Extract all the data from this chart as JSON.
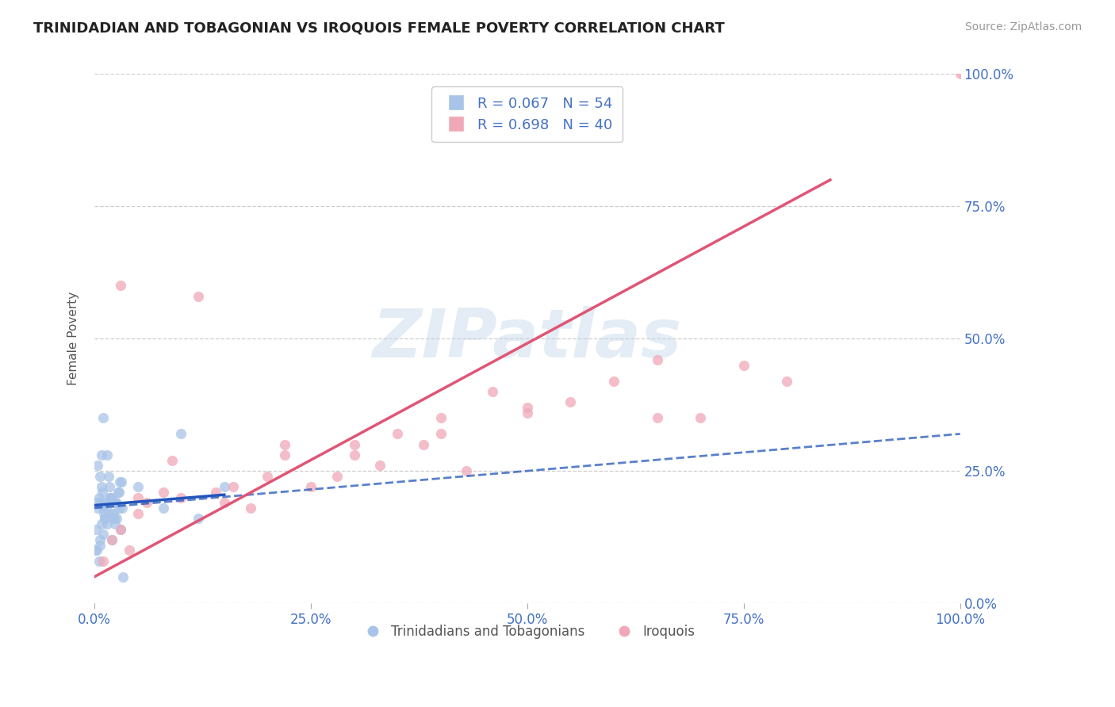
{
  "title": "TRINIDADIAN AND TOBAGONIAN VS IROQUOIS FEMALE POVERTY CORRELATION CHART",
  "source_text": "Source: ZipAtlas.com",
  "ylabel": "Female Poverty",
  "watermark": "ZIPatlas",
  "blue_label": "Trinidadians and Tobagonians",
  "pink_label": "Iroquois",
  "blue_R": 0.067,
  "blue_N": 54,
  "pink_R": 0.698,
  "pink_N": 40,
  "blue_color": "#a8c4e8",
  "pink_color": "#f0a8b8",
  "blue_line_color": "#2255bb",
  "pink_line_color": "#e05575",
  "axis_label_color": "#4472c4",
  "title_color": "#222222",
  "grid_color": "#c8c8c8",
  "background_color": "#ffffff",
  "blue_scatter_x": [
    0.2,
    0.3,
    0.3,
    0.4,
    0.5,
    0.5,
    0.6,
    0.6,
    0.7,
    0.8,
    0.8,
    0.9,
    1.0,
    1.0,
    1.1,
    1.2,
    1.3,
    1.4,
    1.5,
    1.6,
    1.7,
    1.8,
    1.9,
    2.0,
    2.1,
    2.2,
    2.3,
    2.4,
    2.5,
    2.6,
    2.7,
    2.8,
    2.9,
    3.0,
    3.1,
    3.2,
    0.1,
    0.4,
    0.6,
    0.8,
    1.0,
    1.2,
    1.5,
    1.8,
    2.0,
    2.2,
    2.5,
    2.8,
    3.3,
    5.0,
    8.0,
    12.0,
    15.0,
    10.0
  ],
  "blue_scatter_y": [
    14.0,
    10.0,
    19.0,
    18.0,
    20.0,
    8.0,
    11.0,
    24.0,
    19.0,
    22.0,
    15.0,
    21.0,
    18.0,
    13.0,
    17.0,
    16.0,
    19.0,
    18.0,
    15.0,
    24.0,
    22.0,
    20.0,
    20.0,
    17.0,
    19.0,
    16.0,
    16.0,
    15.0,
    19.0,
    16.0,
    21.0,
    18.0,
    23.0,
    14.0,
    23.0,
    18.0,
    10.0,
    26.0,
    12.0,
    28.0,
    35.0,
    16.0,
    28.0,
    20.0,
    12.0,
    17.0,
    19.0,
    21.0,
    5.0,
    22.0,
    18.0,
    16.0,
    22.0,
    32.0
  ],
  "pink_scatter_x": [
    1.0,
    2.0,
    3.0,
    4.0,
    5.0,
    6.0,
    8.0,
    10.0,
    12.0,
    14.0,
    16.0,
    18.0,
    20.0,
    22.0,
    25.0,
    28.0,
    30.0,
    33.0,
    35.0,
    38.0,
    40.0,
    43.0,
    46.0,
    50.0,
    55.0,
    60.0,
    65.0,
    70.0,
    75.0,
    80.0,
    3.0,
    5.0,
    9.0,
    15.0,
    22.0,
    30.0,
    40.0,
    50.0,
    65.0,
    100.0
  ],
  "pink_scatter_y": [
    8.0,
    12.0,
    14.0,
    10.0,
    17.0,
    19.0,
    21.0,
    20.0,
    58.0,
    21.0,
    22.0,
    18.0,
    24.0,
    28.0,
    22.0,
    24.0,
    30.0,
    26.0,
    32.0,
    30.0,
    35.0,
    25.0,
    40.0,
    36.0,
    38.0,
    42.0,
    35.0,
    35.0,
    45.0,
    42.0,
    60.0,
    20.0,
    27.0,
    19.0,
    30.0,
    28.0,
    32.0,
    37.0,
    46.0,
    100.0
  ],
  "xlim": [
    0,
    100
  ],
  "ylim": [
    0,
    100
  ],
  "ytick_positions": [
    0,
    25,
    50,
    75,
    100
  ],
  "ytick_labels": [
    "0.0%",
    "25.0%",
    "50.0%",
    "75.0%",
    "100.0%"
  ],
  "xtick_positions": [
    0,
    25,
    50,
    75,
    100
  ],
  "xtick_labels": [
    "0.0%",
    "25.0%",
    "50.0%",
    "75.0%",
    "100.0%"
  ],
  "blue_line_x0": 0,
  "blue_line_y0": 18.5,
  "blue_line_x1": 15,
  "blue_line_y1": 20.5,
  "blue_dash_x0": 0,
  "blue_dash_y0": 18.0,
  "blue_dash_x1": 100,
  "blue_dash_y1": 32.0,
  "pink_line_x0": 0,
  "pink_line_y0": 5.0,
  "pink_line_x1": 85,
  "pink_line_y1": 80.0
}
